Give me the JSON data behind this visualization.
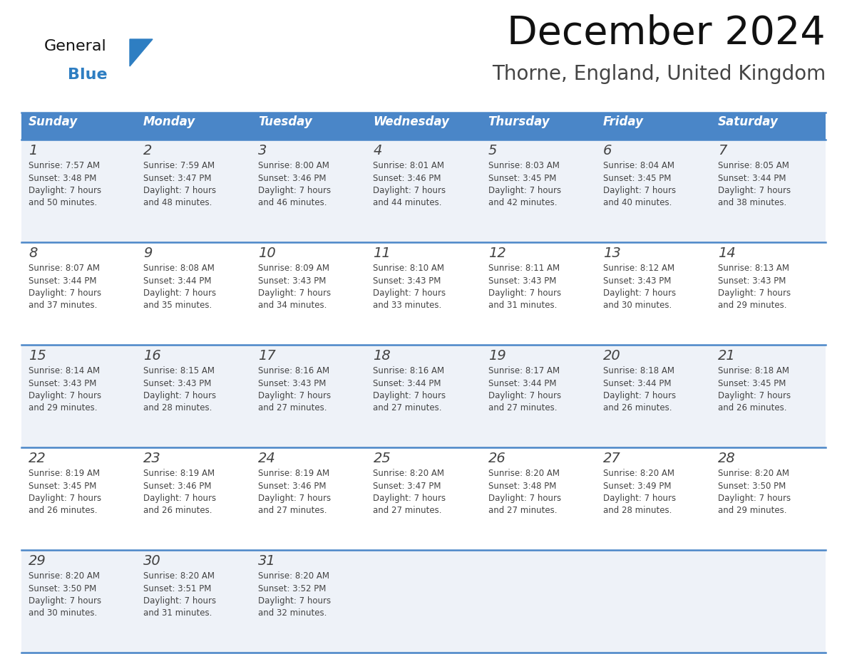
{
  "title": "December 2024",
  "subtitle": "Thorne, England, United Kingdom",
  "days_of_week": [
    "Sunday",
    "Monday",
    "Tuesday",
    "Wednesday",
    "Thursday",
    "Friday",
    "Saturday"
  ],
  "header_bg": "#4a86c8",
  "header_text_color": "#FFFFFF",
  "row_bg_odd": "#eef2f8",
  "row_bg_even": "#FFFFFF",
  "cell_border_color": "#4a86c8",
  "day_number_color": "#444444",
  "text_color": "#444444",
  "title_color": "#111111",
  "subtitle_color": "#444444",
  "logo_general_color": "#111111",
  "logo_blue_color": "#2e7ec2",
  "weeks": [
    [
      {
        "day": 1,
        "sunrise": "7:57 AM",
        "sunset": "3:48 PM",
        "daylight": "7 hours and 50 minutes."
      },
      {
        "day": 2,
        "sunrise": "7:59 AM",
        "sunset": "3:47 PM",
        "daylight": "7 hours and 48 minutes."
      },
      {
        "day": 3,
        "sunrise": "8:00 AM",
        "sunset": "3:46 PM",
        "daylight": "7 hours and 46 minutes."
      },
      {
        "day": 4,
        "sunrise": "8:01 AM",
        "sunset": "3:46 PM",
        "daylight": "7 hours and 44 minutes."
      },
      {
        "day": 5,
        "sunrise": "8:03 AM",
        "sunset": "3:45 PM",
        "daylight": "7 hours and 42 minutes."
      },
      {
        "day": 6,
        "sunrise": "8:04 AM",
        "sunset": "3:45 PM",
        "daylight": "7 hours and 40 minutes."
      },
      {
        "day": 7,
        "sunrise": "8:05 AM",
        "sunset": "3:44 PM",
        "daylight": "7 hours and 38 minutes."
      }
    ],
    [
      {
        "day": 8,
        "sunrise": "8:07 AM",
        "sunset": "3:44 PM",
        "daylight": "7 hours and 37 minutes."
      },
      {
        "day": 9,
        "sunrise": "8:08 AM",
        "sunset": "3:44 PM",
        "daylight": "7 hours and 35 minutes."
      },
      {
        "day": 10,
        "sunrise": "8:09 AM",
        "sunset": "3:43 PM",
        "daylight": "7 hours and 34 minutes."
      },
      {
        "day": 11,
        "sunrise": "8:10 AM",
        "sunset": "3:43 PM",
        "daylight": "7 hours and 33 minutes."
      },
      {
        "day": 12,
        "sunrise": "8:11 AM",
        "sunset": "3:43 PM",
        "daylight": "7 hours and 31 minutes."
      },
      {
        "day": 13,
        "sunrise": "8:12 AM",
        "sunset": "3:43 PM",
        "daylight": "7 hours and 30 minutes."
      },
      {
        "day": 14,
        "sunrise": "8:13 AM",
        "sunset": "3:43 PM",
        "daylight": "7 hours and 29 minutes."
      }
    ],
    [
      {
        "day": 15,
        "sunrise": "8:14 AM",
        "sunset": "3:43 PM",
        "daylight": "7 hours and 29 minutes."
      },
      {
        "day": 16,
        "sunrise": "8:15 AM",
        "sunset": "3:43 PM",
        "daylight": "7 hours and 28 minutes."
      },
      {
        "day": 17,
        "sunrise": "8:16 AM",
        "sunset": "3:43 PM",
        "daylight": "7 hours and 27 minutes."
      },
      {
        "day": 18,
        "sunrise": "8:16 AM",
        "sunset": "3:44 PM",
        "daylight": "7 hours and 27 minutes."
      },
      {
        "day": 19,
        "sunrise": "8:17 AM",
        "sunset": "3:44 PM",
        "daylight": "7 hours and 27 minutes."
      },
      {
        "day": 20,
        "sunrise": "8:18 AM",
        "sunset": "3:44 PM",
        "daylight": "7 hours and 26 minutes."
      },
      {
        "day": 21,
        "sunrise": "8:18 AM",
        "sunset": "3:45 PM",
        "daylight": "7 hours and 26 minutes."
      }
    ],
    [
      {
        "day": 22,
        "sunrise": "8:19 AM",
        "sunset": "3:45 PM",
        "daylight": "7 hours and 26 minutes."
      },
      {
        "day": 23,
        "sunrise": "8:19 AM",
        "sunset": "3:46 PM",
        "daylight": "7 hours and 26 minutes."
      },
      {
        "day": 24,
        "sunrise": "8:19 AM",
        "sunset": "3:46 PM",
        "daylight": "7 hours and 27 minutes."
      },
      {
        "day": 25,
        "sunrise": "8:20 AM",
        "sunset": "3:47 PM",
        "daylight": "7 hours and 27 minutes."
      },
      {
        "day": 26,
        "sunrise": "8:20 AM",
        "sunset": "3:48 PM",
        "daylight": "7 hours and 27 minutes."
      },
      {
        "day": 27,
        "sunrise": "8:20 AM",
        "sunset": "3:49 PM",
        "daylight": "7 hours and 28 minutes."
      },
      {
        "day": 28,
        "sunrise": "8:20 AM",
        "sunset": "3:50 PM",
        "daylight": "7 hours and 29 minutes."
      }
    ],
    [
      {
        "day": 29,
        "sunrise": "8:20 AM",
        "sunset": "3:50 PM",
        "daylight": "7 hours and 30 minutes."
      },
      {
        "day": 30,
        "sunrise": "8:20 AM",
        "sunset": "3:51 PM",
        "daylight": "7 hours and 31 minutes."
      },
      {
        "day": 31,
        "sunrise": "8:20 AM",
        "sunset": "3:52 PM",
        "daylight": "7 hours and 32 minutes."
      },
      null,
      null,
      null,
      null
    ]
  ],
  "figsize": [
    11.88,
    9.18
  ],
  "dpi": 100
}
